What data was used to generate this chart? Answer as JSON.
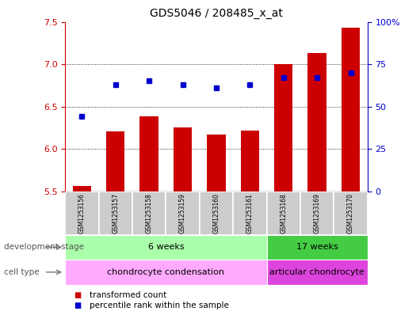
{
  "title": "GDS5046 / 208485_x_at",
  "samples": [
    "GSM1253156",
    "GSM1253157",
    "GSM1253158",
    "GSM1253159",
    "GSM1253160",
    "GSM1253161",
    "GSM1253168",
    "GSM1253169",
    "GSM1253170"
  ],
  "transformed_count": [
    5.56,
    6.21,
    6.38,
    6.25,
    6.17,
    6.22,
    7.0,
    7.13,
    7.43
  ],
  "percentile_rank": [
    44,
    63,
    65,
    63,
    61,
    63,
    67,
    67,
    70
  ],
  "ylim_left": [
    5.5,
    7.5
  ],
  "ylim_right": [
    0,
    100
  ],
  "yticks_left": [
    5.5,
    6.0,
    6.5,
    7.0,
    7.5
  ],
  "yticks_right": [
    0,
    25,
    50,
    75,
    100
  ],
  "ytick_labels_right": [
    "0",
    "25",
    "50",
    "75",
    "100%"
  ],
  "bar_color": "#cc0000",
  "dot_color": "#0000cc",
  "bar_bottom": 5.5,
  "group_indices": [
    [
      0,
      1,
      2,
      3,
      4,
      5
    ],
    [
      6,
      7,
      8
    ]
  ],
  "dev_stage_groups": [
    {
      "label": "6 weeks",
      "color": "#aaffaa"
    },
    {
      "label": "17 weeks",
      "color": "#44cc44"
    }
  ],
  "cell_type_groups": [
    {
      "label": "chondrocyte condensation",
      "color": "#ffaaff"
    },
    {
      "label": "articular chondrocyte",
      "color": "#dd44dd"
    }
  ],
  "legend_items": [
    {
      "label": "transformed count",
      "color": "#cc0000"
    },
    {
      "label": "percentile rank within the sample",
      "color": "#0000cc"
    }
  ],
  "dev_stage_label": "development stage",
  "cell_type_label": "cell type",
  "axis_color_left": "#cc0000",
  "axis_color_right": "#0000cc",
  "sample_box_color": "#cccccc",
  "gridline_color": "black"
}
